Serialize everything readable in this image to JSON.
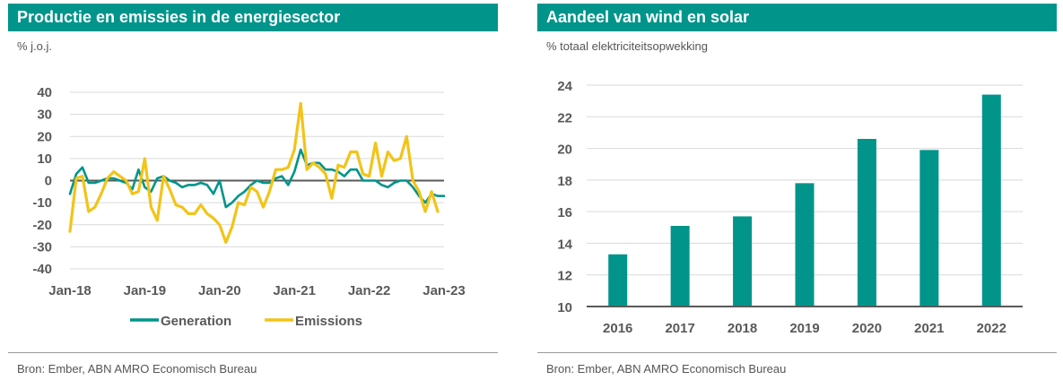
{
  "colors": {
    "teal": "#00948a",
    "gold": "#f2c418",
    "grid": "#d9d9d9",
    "axis": "#595959"
  },
  "left": {
    "title": "Productie en emissies in de energiesector",
    "unit": "% j.o.j.",
    "source": "Bron: Ember, ABN AMRO Economisch Bureau"
  },
  "right": {
    "title": "Aandeel van wind en solar",
    "unit": "% totaal elektriciteitsopwekking",
    "source": "Bron: Ember, ABN AMRO Economisch Bureau"
  },
  "chart_data": [
    {
      "type": "line",
      "title": "Productie en emissies in de energiesector",
      "ylabel": "% j.o.j.",
      "xlabel": "",
      "ylim": [
        -40,
        40
      ],
      "yticks": [
        40,
        30,
        20,
        10,
        0,
        -10,
        -20,
        -30,
        -40
      ],
      "xticks": [
        "Jan-18",
        "Jan-19",
        "Jan-20",
        "Jan-21",
        "Jan-22",
        "Jan-23"
      ],
      "x_start": "Jan-18",
      "x_step": "month",
      "legend": "bottom",
      "series": [
        {
          "name": "Generation",
          "color": "#00948a",
          "values": [
            -6,
            3,
            6,
            -1,
            -1,
            0,
            1,
            1,
            0,
            -1,
            -4,
            5,
            -3,
            -5,
            1,
            2,
            0,
            -1,
            -3,
            -2,
            -2,
            -1,
            -2,
            -6,
            0,
            -12,
            -10,
            -7,
            -5,
            -2,
            0,
            -1,
            -1,
            1,
            2,
            -2,
            4,
            14,
            7,
            8,
            8,
            5,
            5,
            4,
            2,
            5,
            5,
            0,
            0,
            0,
            -2,
            -3,
            -1,
            0,
            0,
            -3,
            -7,
            -10,
            -6,
            -7,
            -7
          ]
        },
        {
          "name": "Emissions",
          "color": "#f2c418",
          "values": [
            -23,
            1,
            2,
            -14,
            -12,
            -6,
            1,
            4,
            2,
            0,
            -6,
            -5,
            10,
            -12,
            -18,
            2,
            -4,
            -11,
            -12,
            -15,
            -15,
            -11,
            -15,
            -17,
            -20,
            -28,
            -21,
            -10,
            -11,
            -3,
            -5,
            -12,
            -5,
            5,
            5,
            6,
            14,
            35,
            5,
            8,
            6,
            3,
            -8,
            7,
            6,
            13,
            13,
            3,
            2,
            17,
            2,
            13,
            9,
            10,
            20,
            0,
            -5,
            -14,
            -5,
            -14
          ]
        }
      ]
    },
    {
      "type": "bar",
      "title": "Aandeel van wind en solar",
      "ylabel": "% totaal elektriciteitsopwekking",
      "xlabel": "",
      "ylim": [
        10,
        24
      ],
      "yticks": [
        24,
        22,
        20,
        18,
        16,
        14,
        12,
        10
      ],
      "categories": [
        "2016",
        "2017",
        "2018",
        "2019",
        "2020",
        "2021",
        "2022"
      ],
      "values": [
        13.3,
        15.1,
        15.7,
        17.8,
        20.6,
        19.9,
        23.4
      ],
      "color": "#00948a"
    }
  ]
}
